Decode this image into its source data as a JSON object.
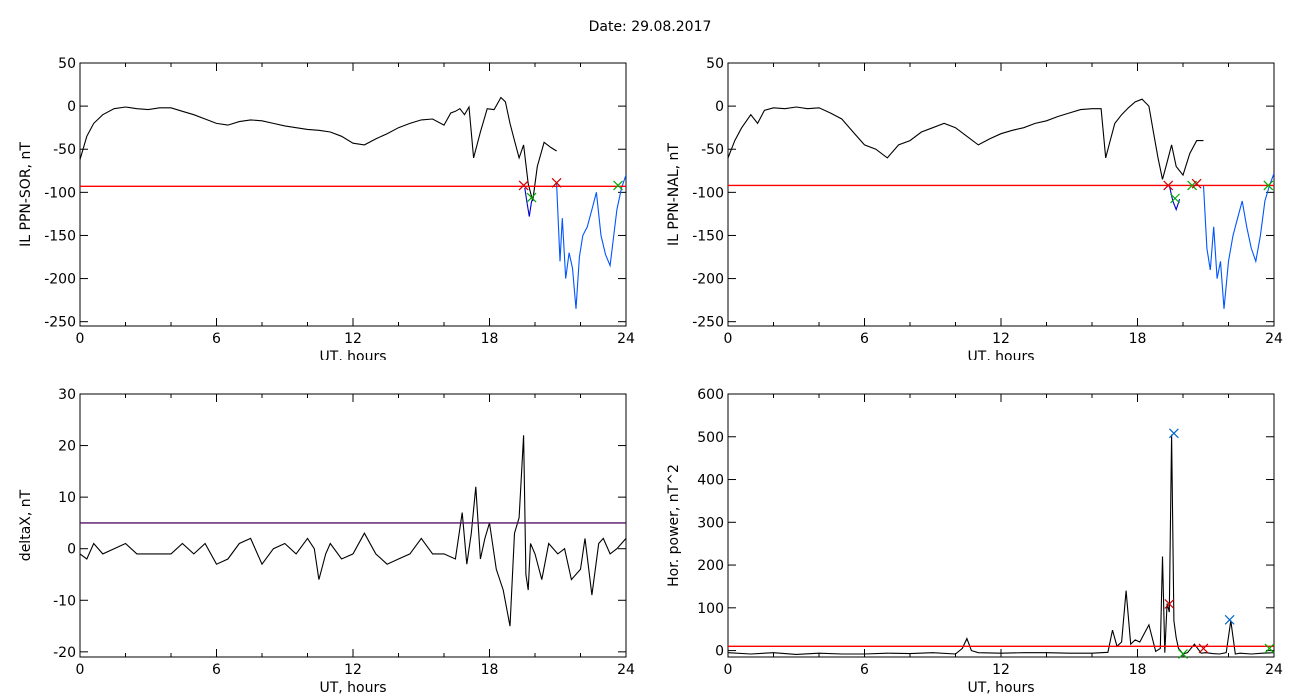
{
  "figure": {
    "title": "Date:  29.08.2017"
  },
  "chart_data": [
    {
      "id": "p1",
      "type": "line",
      "xlabel": "UT, hours",
      "ylabel": "IL PPN-SOR, nT",
      "xlim": [
        0,
        24
      ],
      "ylim": [
        -255,
        50
      ],
      "xticks": [
        "0",
        "6",
        "12",
        "18",
        "24"
      ],
      "yticks": [
        "50",
        "0",
        "-50",
        "-100",
        "-150",
        "-200",
        "-250"
      ],
      "threshold": -93,
      "threshold_color": "#ff0000",
      "series": [
        {
          "color": "#000000",
          "x": [
            0,
            0.3,
            0.6,
            1,
            1.5,
            2,
            2.5,
            3,
            3.5,
            4,
            4.5,
            5,
            5.5,
            6,
            6.5,
            7,
            7.5,
            8,
            8.5,
            9,
            9.5,
            10,
            10.5,
            11,
            11.5,
            12,
            12.5,
            13,
            13.5,
            14,
            14.5,
            15,
            15.5,
            16,
            16.3,
            16.5,
            16.7,
            16.9,
            17.1,
            17.3,
            17.6,
            17.9,
            18.2,
            18.5,
            18.7,
            18.9,
            19.1,
            19.3,
            19.5,
            19.7,
            19.9,
            20.1,
            20.4,
            20.7,
            20.95
          ],
          "y": [
            -62,
            -35,
            -20,
            -10,
            -3,
            -1,
            -3,
            -4,
            -2,
            -2,
            -6,
            -10,
            -15,
            -20,
            -22,
            -18,
            -16,
            -17,
            -20,
            -23,
            -25,
            -27,
            -28,
            -30,
            -35,
            -43,
            -45,
            -38,
            -32,
            -25,
            -20,
            -16,
            -15,
            -22,
            -8,
            -6,
            -3,
            -10,
            -1,
            -60,
            -30,
            -3,
            -4,
            10,
            5,
            -20,
            -40,
            -60,
            -45,
            -90,
            -110,
            -70,
            -42,
            -48,
            -52
          ]
        },
        {
          "color": "#0000cc",
          "x": [
            19.55,
            19.65,
            19.75,
            19.85,
            19.95
          ],
          "y": [
            -95,
            -112,
            -128,
            -110,
            -108
          ]
        },
        {
          "color": "#0055ff",
          "x": [
            20.95,
            21.1,
            21.2,
            21.35,
            21.5,
            21.65,
            21.8,
            21.95,
            22.1,
            22.3,
            22.5,
            22.7,
            22.9,
            23.1,
            23.3,
            23.6,
            23.8,
            24
          ],
          "y": [
            -90,
            -180,
            -130,
            -200,
            -170,
            -188,
            -235,
            -175,
            -150,
            -140,
            -120,
            -100,
            -150,
            -172,
            -185,
            -120,
            -95,
            -80
          ]
        }
      ],
      "markers": [
        {
          "x": 19.5,
          "y": -92,
          "color": "#cc0000"
        },
        {
          "x": 19.85,
          "y": -106,
          "color": "#00aa00"
        },
        {
          "x": 20.95,
          "y": -89,
          "color": "#cc0000"
        },
        {
          "x": 23.65,
          "y": -92,
          "color": "#00aa00"
        }
      ]
    },
    {
      "id": "p2",
      "type": "line",
      "xlabel": "UT, hours",
      "ylabel": "IL PPN-NAL, nT",
      "xlim": [
        0,
        24
      ],
      "ylim": [
        -255,
        50
      ],
      "xticks": [
        "0",
        "6",
        "12",
        "18",
        "24"
      ],
      "yticks": [
        "50",
        "0",
        "-50",
        "-100",
        "-150",
        "-200",
        "-250"
      ],
      "threshold": -92,
      "threshold_color": "#ff0000",
      "series": [
        {
          "color": "#000000",
          "x": [
            0,
            0.3,
            0.6,
            1,
            1.3,
            1.6,
            2,
            2.5,
            3,
            3.5,
            4,
            4.5,
            5,
            5.5,
            6,
            6.5,
            7,
            7.5,
            8,
            8.5,
            9,
            9.5,
            10,
            10.5,
            11,
            11.5,
            12,
            12.5,
            13,
            13.5,
            14,
            14.5,
            15,
            15.5,
            16,
            16.4,
            16.6,
            16.8,
            17,
            17.3,
            17.6,
            17.9,
            18.2,
            18.5,
            18.7,
            18.9,
            19.1,
            19.3,
            19.5,
            19.7,
            20,
            20.3,
            20.6,
            20.9
          ],
          "y": [
            -60,
            -40,
            -25,
            -10,
            -20,
            -5,
            -2,
            -3,
            -1,
            -3,
            -2,
            -8,
            -15,
            -30,
            -45,
            -50,
            -60,
            -45,
            -40,
            -30,
            -25,
            -20,
            -25,
            -35,
            -45,
            -38,
            -32,
            -28,
            -25,
            -20,
            -17,
            -12,
            -8,
            -4,
            -3,
            -3,
            -60,
            -40,
            -20,
            -10,
            -2,
            5,
            8,
            0,
            -30,
            -60,
            -85,
            -65,
            -45,
            -70,
            -80,
            -55,
            -40,
            -40
          ]
        },
        {
          "color": "#0000cc",
          "x": [
            19.4,
            19.55,
            19.7,
            19.85
          ],
          "y": [
            -92,
            -110,
            -120,
            -108
          ]
        },
        {
          "color": "#0055ff",
          "x": [
            20.9,
            21.05,
            21.2,
            21.35,
            21.5,
            21.65,
            21.8,
            22,
            22.2,
            22.4,
            22.6,
            22.8,
            23,
            23.2,
            23.4,
            23.6,
            23.8,
            24
          ],
          "y": [
            -92,
            -165,
            -190,
            -140,
            -200,
            -180,
            -235,
            -180,
            -150,
            -130,
            -110,
            -140,
            -165,
            -180,
            -150,
            -110,
            -92,
            -78
          ]
        }
      ],
      "markers": [
        {
          "x": 19.35,
          "y": -92,
          "color": "#cc0000"
        },
        {
          "x": 19.65,
          "y": -107,
          "color": "#00aa00"
        },
        {
          "x": 20.4,
          "y": -92,
          "color": "#00aa00"
        },
        {
          "x": 20.6,
          "y": -90,
          "color": "#cc0000"
        },
        {
          "x": 23.75,
          "y": -92,
          "color": "#00aa00"
        }
      ]
    },
    {
      "id": "p3",
      "type": "line",
      "xlabel": "UT, hours",
      "ylabel": "deltaX, nT",
      "xlim": [
        0,
        24
      ],
      "ylim": [
        -21,
        30
      ],
      "xticks": [
        "0",
        "6",
        "12",
        "18",
        "24"
      ],
      "yticks": [
        "30",
        "20",
        "10",
        "0",
        "-10",
        "-20"
      ],
      "threshold": 5,
      "threshold_color": "#551166",
      "series": [
        {
          "color": "#000000",
          "x": [
            0,
            0.3,
            0.6,
            1,
            1.5,
            2,
            2.5,
            3,
            3.5,
            4,
            4.5,
            5,
            5.5,
            6,
            6.5,
            7,
            7.5,
            8,
            8.5,
            9,
            9.5,
            10,
            10.3,
            10.5,
            10.8,
            11,
            11.5,
            12,
            12.5,
            13,
            13.5,
            14,
            14.5,
            15,
            15.5,
            16,
            16.5,
            16.8,
            17,
            17.2,
            17.4,
            17.6,
            17.8,
            18,
            18.3,
            18.6,
            18.9,
            19.1,
            19.3,
            19.5,
            19.6,
            19.7,
            19.8,
            20,
            20.3,
            20.6,
            21,
            21.3,
            21.6,
            22,
            22.2,
            22.5,
            22.8,
            23,
            23.3,
            23.6,
            24
          ],
          "y": [
            -1,
            -2,
            1,
            -1,
            0,
            1,
            -1,
            -1,
            -1,
            -1,
            1,
            -1,
            1,
            -3,
            -2,
            1,
            2,
            -3,
            0,
            1,
            -1,
            2,
            0,
            -6,
            -1,
            1,
            -2,
            -1,
            3,
            -1,
            -3,
            -2,
            -1,
            2,
            -1,
            -1,
            -2,
            7,
            -3,
            3,
            12,
            -2,
            2,
            5,
            -4,
            -8,
            -15,
            3,
            6,
            22,
            -5,
            -8,
            1,
            -1,
            -6,
            1,
            -1,
            0,
            -6,
            -4,
            2,
            -9,
            1,
            2,
            -1,
            0,
            2
          ]
        }
      ],
      "markers": []
    },
    {
      "id": "p4",
      "type": "line",
      "xlabel": "UT, hours",
      "ylabel": "Hor. power, nT^2",
      "xlim": [
        0,
        24
      ],
      "ylim": [
        -15,
        600
      ],
      "xticks": [
        "0",
        "6",
        "12",
        "18",
        "24"
      ],
      "yticks": [
        "600",
        "500",
        "400",
        "300",
        "200",
        "100",
        "0"
      ],
      "threshold": 10,
      "threshold_color": "#ff0000",
      "series": [
        {
          "color": "#000000",
          "x": [
            0,
            1,
            2,
            3,
            4,
            5,
            6,
            7,
            8,
            9,
            10,
            10.3,
            10.5,
            10.7,
            11,
            12,
            13,
            14,
            15,
            16,
            16.7,
            16.9,
            17.1,
            17.3,
            17.5,
            17.7,
            17.9,
            18.1,
            18.3,
            18.5,
            18.8,
            19,
            19.1,
            19.2,
            19.3,
            19.4,
            19.5,
            19.6,
            19.7,
            19.8,
            20,
            20.2,
            20.5,
            20.8,
            21,
            21.3,
            21.6,
            21.9,
            22.1,
            22.3,
            22.5,
            23,
            23.5,
            24
          ],
          "y": [
            -5,
            -8,
            -5,
            -9,
            -6,
            -8,
            -8,
            -6,
            -7,
            -5,
            -8,
            5,
            28,
            0,
            -5,
            -6,
            -5,
            -5,
            -6,
            -6,
            -4,
            48,
            10,
            20,
            140,
            15,
            25,
            20,
            40,
            60,
            -2,
            5,
            220,
            -5,
            110,
            90,
            505,
            70,
            30,
            5,
            -8,
            -5,
            15,
            -6,
            -5,
            -7,
            -8,
            -5,
            70,
            -8,
            -6,
            -8,
            -6,
            -5
          ]
        }
      ],
      "markers": [
        {
          "x": 19.4,
          "y": 109,
          "color": "#cc0000"
        },
        {
          "x": 19.6,
          "y": 508,
          "color": "#0066cc"
        },
        {
          "x": 20.0,
          "y": -8,
          "color": "#00aa00"
        },
        {
          "x": 20.9,
          "y": 5,
          "color": "#cc0000"
        },
        {
          "x": 22.05,
          "y": 72,
          "color": "#0066cc"
        },
        {
          "x": 23.8,
          "y": 5,
          "color": "#00aa00"
        }
      ]
    }
  ]
}
